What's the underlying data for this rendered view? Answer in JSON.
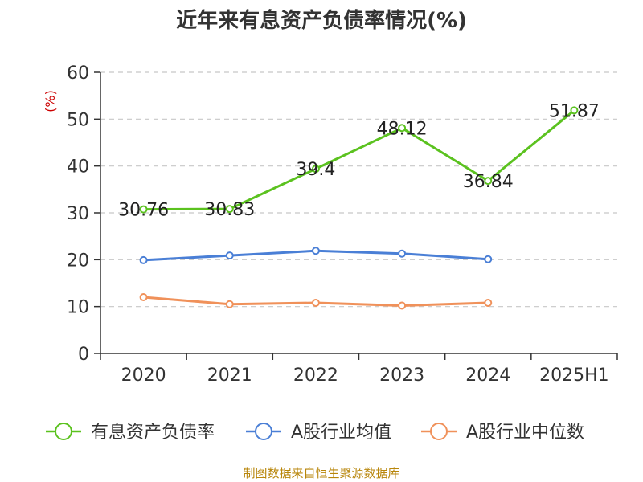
{
  "chart_data": {
    "type": "line",
    "title": "近年来有息资产负债率情况(%)",
    "unit_label": "(%)",
    "categories": [
      "2020",
      "2021",
      "2022",
      "2023",
      "2024",
      "2025H1"
    ],
    "ylim": [
      0,
      60
    ],
    "yticks": [
      "0",
      "10",
      "20",
      "30",
      "40",
      "50",
      "60"
    ],
    "grid": true,
    "legend_position": "bottom",
    "series": [
      {
        "name": "有息资产负债率",
        "color": "#5bc21f",
        "values": [
          30.76,
          30.83,
          39.4,
          48.12,
          36.84,
          51.87
        ],
        "labels": [
          "30.76",
          "30.83",
          "39.4",
          "48.12",
          "36.84",
          "51.87"
        ]
      },
      {
        "name": "A股行业均值",
        "color": "#4a7fd6",
        "values": [
          19.9,
          20.9,
          21.9,
          21.3,
          20.1,
          null
        ]
      },
      {
        "name": "A股行业中位数",
        "color": "#f0915a",
        "values": [
          12.0,
          10.5,
          10.8,
          10.2,
          10.8,
          null
        ]
      }
    ]
  },
  "source": "制图数据来自恒生聚源数据库"
}
